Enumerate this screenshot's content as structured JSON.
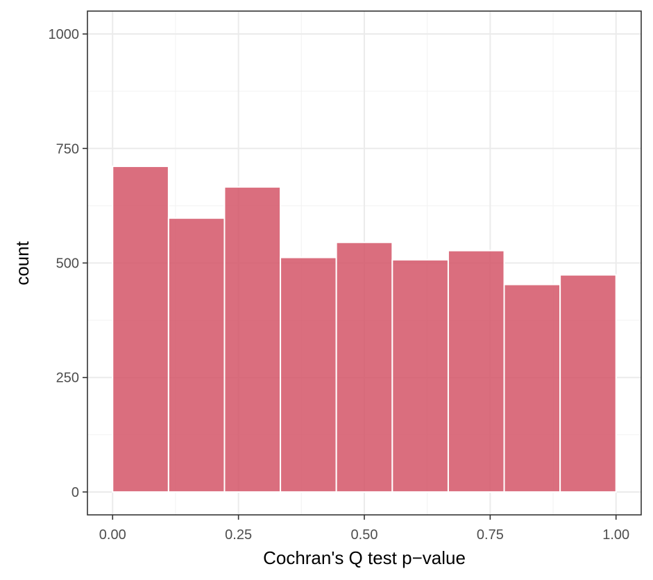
{
  "chart_data": {
    "type": "bar",
    "xlabel": "Cochran's Q test p−value",
    "ylabel": "count",
    "xlim": [
      -0.05,
      1.05
    ],
    "ylim": [
      -50,
      1050
    ],
    "x_ticks": [
      0,
      0.25,
      0.5,
      0.75,
      1
    ],
    "x_tick_labels": [
      "0.00",
      "0.25",
      "0.50",
      "0.75",
      "1.00"
    ],
    "y_ticks": [
      0,
      250,
      500,
      750,
      1000
    ],
    "y_tick_labels": [
      "0",
      "250",
      "500",
      "750",
      "1000"
    ],
    "bins": [
      {
        "x0": 0.0,
        "x1": 0.1111,
        "count": 711
      },
      {
        "x0": 0.1111,
        "x1": 0.2222,
        "count": 598
      },
      {
        "x0": 0.2222,
        "x1": 0.3333,
        "count": 666
      },
      {
        "x0": 0.3333,
        "x1": 0.4444,
        "count": 512
      },
      {
        "x0": 0.4444,
        "x1": 0.5556,
        "count": 545
      },
      {
        "x0": 0.5556,
        "x1": 0.6667,
        "count": 507
      },
      {
        "x0": 0.6667,
        "x1": 0.7778,
        "count": 527
      },
      {
        "x0": 0.7778,
        "x1": 0.8889,
        "count": 453
      },
      {
        "x0": 0.8889,
        "x1": 1.0,
        "count": 474
      }
    ],
    "grid": true,
    "bar_color": "#d35567",
    "bar_border_color": "#ffffff"
  }
}
